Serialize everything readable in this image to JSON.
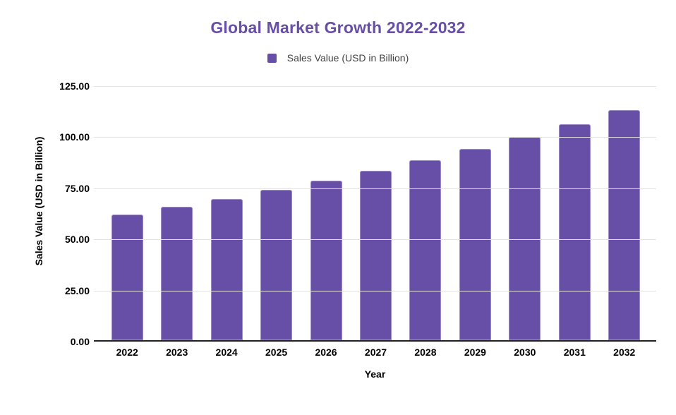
{
  "chart_data": {
    "type": "bar",
    "title": "Global Market Growth 2022-2032",
    "xlabel": "Year",
    "ylabel": "Sales Value (USD in Billion)",
    "categories": [
      "2022",
      "2023",
      "2024",
      "2025",
      "2026",
      "2027",
      "2028",
      "2029",
      "2030",
      "2031",
      "2032"
    ],
    "series": [
      {
        "name": "Sales Value (USD in Billion)",
        "color": "#674ea7",
        "values": [
          62.0,
          65.8,
          69.9,
          74.3,
          78.9,
          83.7,
          88.9,
          94.4,
          100.3,
          106.5,
          113.1
        ]
      }
    ],
    "ylim": [
      0,
      125
    ],
    "yticks": [
      {
        "value": 0,
        "label": "0.00"
      },
      {
        "value": 25,
        "label": "25.00"
      },
      {
        "value": 50,
        "label": "50.00"
      },
      {
        "value": 75,
        "label": "75.00"
      },
      {
        "value": 100,
        "label": "100.00"
      },
      {
        "value": 125,
        "label": "125.00"
      }
    ],
    "grid": true,
    "legend_position": "top",
    "colors": {
      "bar": "#674ea7",
      "title": "#674ea7",
      "grid_line": "#e3e3e3",
      "axis_line": "#212121",
      "tick_text": "#000000",
      "legend_text": "#424242",
      "background": "#ffffff"
    }
  }
}
